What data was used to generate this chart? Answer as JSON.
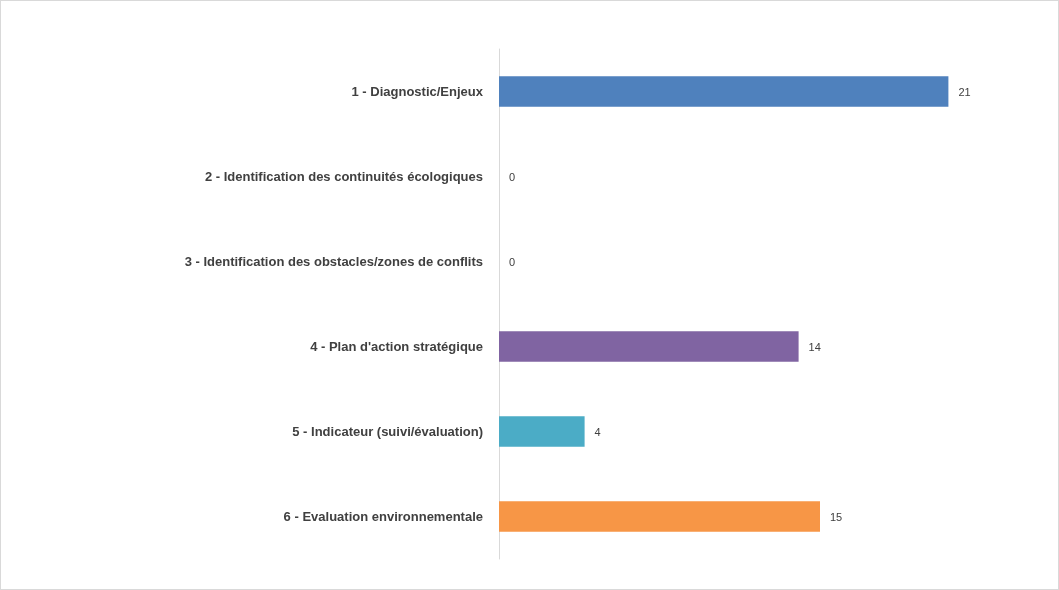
{
  "chart_data": {
    "type": "bar",
    "orientation": "horizontal",
    "categories": [
      "1 - Diagnostic/Enjeux",
      "2 - Identification des continuités écologiques",
      "3 - Identification des obstacles/zones de conflits",
      "4 - Plan d'action stratégique",
      "5 - Indicateur (suivi/évaluation)",
      "6 - Evaluation environnementale"
    ],
    "values": [
      21,
      0,
      0,
      14,
      4,
      15
    ],
    "colors": [
      "#4f81bd",
      "#c0504d",
      "#9bbb59",
      "#8064a2",
      "#4bacc6",
      "#f79646"
    ],
    "data_labels": true,
    "tick_labels": "y"
  }
}
